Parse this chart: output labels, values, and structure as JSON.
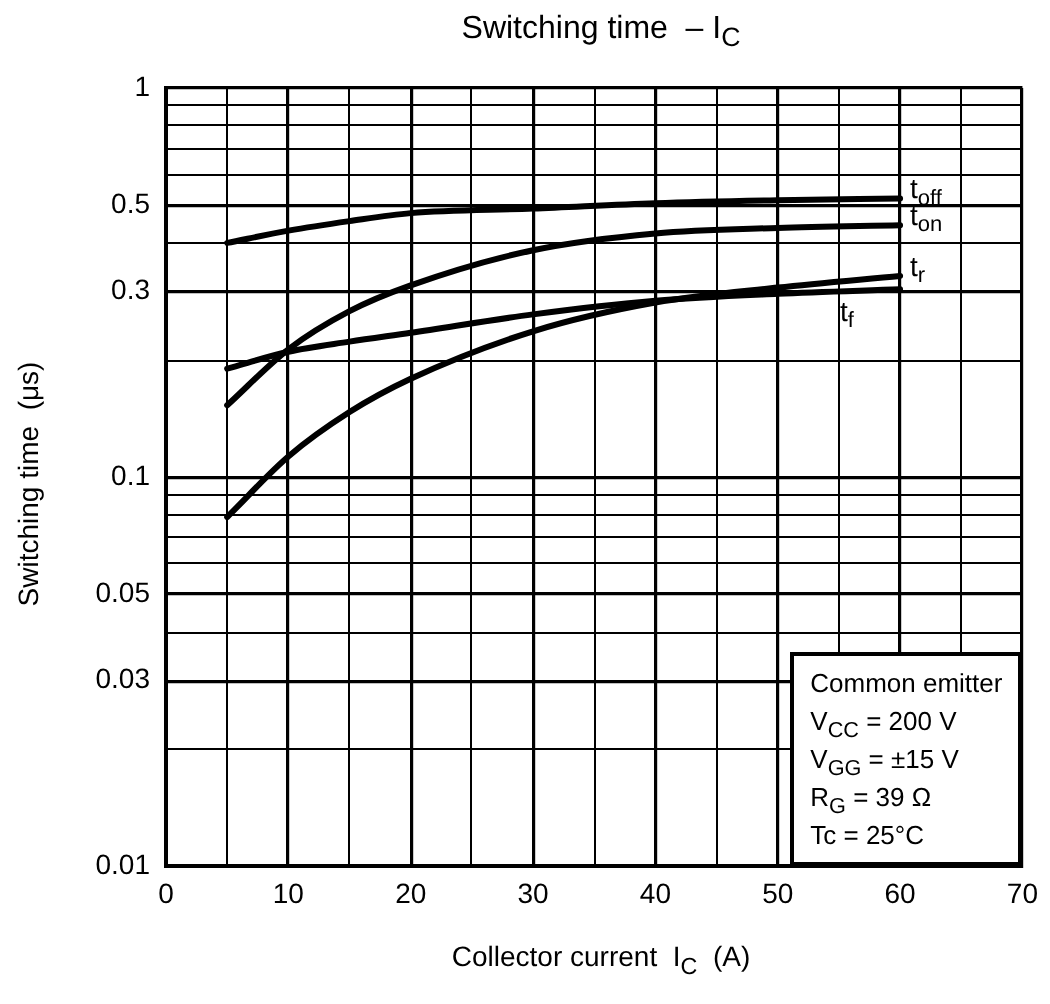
{
  "chart_data": {
    "type": "line",
    "title": "Switching time  – I$_{C}$",
    "xlabel": "Collector current  I$_{C}$  (A)",
    "ylabel": "Switching time  (μs)",
    "x": [
      5,
      10,
      15,
      20,
      30,
      40,
      50,
      60
    ],
    "series": [
      {
        "name": "t$_{off}$",
        "color": "#000000",
        "values": [
          0.4,
          0.43,
          0.455,
          0.477,
          0.49,
          0.506,
          0.515,
          0.52
        ]
      },
      {
        "name": "t$_{on}$",
        "color": "#000000",
        "values": [
          0.153,
          0.213,
          0.267,
          0.311,
          0.383,
          0.423,
          0.437,
          0.444
        ]
      },
      {
        "name": "t$_{r}$",
        "color": "#000000",
        "values": [
          0.079,
          0.113,
          0.147,
          0.179,
          0.237,
          0.281,
          0.307,
          0.329
        ]
      },
      {
        "name": "t$_{f}$",
        "color": "#000000",
        "values": [
          0.19,
          0.21,
          0.223,
          0.235,
          0.262,
          0.284,
          0.296,
          0.304
        ]
      }
    ],
    "xlim": [
      0,
      70
    ],
    "xticks": [
      0,
      {
        "value": 5,
        "label": null
      },
      10,
      {
        "value": 15,
        "label": null
      },
      20,
      {
        "value": 25,
        "label": null
      },
      30,
      {
        "value": 35,
        "label": null
      },
      40,
      {
        "value": 45,
        "label": null
      },
      50,
      {
        "value": 55,
        "label": null
      },
      60,
      {
        "value": 65,
        "label": null
      },
      70
    ],
    "ylim": [
      0.01,
      1
    ],
    "log": true,
    "yticks": [
      0.01,
      {
        "value": 0.02,
        "label": null
      },
      0.03,
      {
        "value": 0.04,
        "label": null
      },
      0.05,
      {
        "value": 0.06,
        "label": null
      },
      {
        "value": 0.07,
        "label": null
      },
      {
        "value": 0.08,
        "label": null
      },
      {
        "value": 0.09,
        "label": null
      },
      0.1,
      {
        "value": 0.2,
        "label": null
      },
      0.3,
      {
        "value": 0.4,
        "label": null
      },
      0.5,
      {
        "value": 0.6,
        "label": null
      },
      {
        "value": 0.7,
        "label": null
      },
      {
        "value": 0.8,
        "label": null
      },
      {
        "value": 0.9,
        "label": null
      },
      1
    ],
    "grid": true,
    "legend": false,
    "marker": "none",
    "line_style": "solid",
    "annotations": [
      "Common emitter",
      "V$_{CC}$ = 200 V",
      "V$_{GG}$ = ±15 V",
      "R$_{G}$ = 39 Ω",
      "Tc = 25°C"
    ]
  }
}
